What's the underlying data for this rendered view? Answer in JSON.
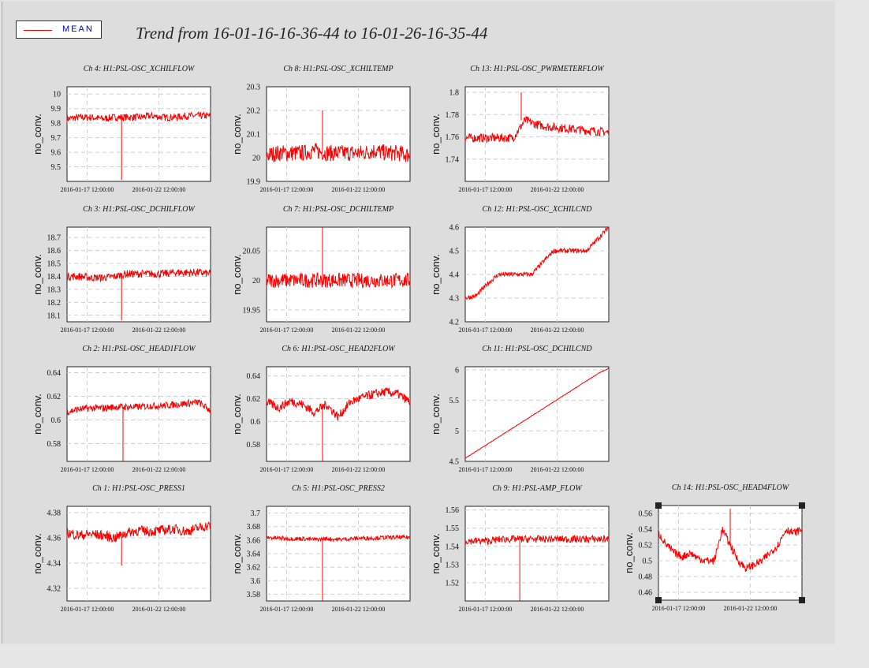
{
  "title": "Trend from 16-01-16-16-36-44 to 16-01-26-16-35-44",
  "legend": {
    "label": "MEAN",
    "color": "#ff0000"
  },
  "xticks": [
    "2016-01-17 12:00:00",
    "2016-01-22 12:00:00"
  ],
  "ylabel": "no_conv.",
  "selected_panel": "Ch 14: H1:PSL-OSC_HEAD4FLOW",
  "chart_data": [
    {
      "type": "line",
      "title": "Ch 4: H1:PSL-OSC_XCHILFLOW",
      "ylabel": "no_conv.",
      "ylim": [
        9.4,
        10.05
      ],
      "yticks": [
        9.5,
        9.6,
        9.7,
        9.8,
        9.9,
        10
      ],
      "series": [
        {
          "values": [
            9.83,
            9.84,
            9.84,
            9.83,
            9.84,
            9.84,
            9.84,
            9.85,
            9.84,
            9.84,
            9.85,
            9.85,
            9.85
          ],
          "noise": 0.05,
          "spike": [
            0.38,
            9.41
          ]
        }
      ]
    },
    {
      "type": "line",
      "title": "Ch 8: H1:PSL-OSC_XCHILTEMP",
      "ylabel": "no_conv.",
      "ylim": [
        19.9,
        20.3
      ],
      "yticks": [
        19.9,
        20,
        20.1,
        20.2,
        20.3
      ],
      "series": [
        {
          "values": [
            20.01,
            20.02,
            20.02,
            20.02,
            20.03,
            20.02,
            20.02,
            20.02,
            20.02,
            20.03,
            20.02,
            20.02,
            20.01
          ],
          "noise": 0.07,
          "spike": [
            0.39,
            20.2
          ]
        }
      ]
    },
    {
      "type": "line",
      "title": "Ch 13: H1:PSL-OSC_PWRMETERFLOW",
      "ylabel": "no_conv.",
      "ylim": [
        1.72,
        1.805
      ],
      "yticks": [
        1.74,
        1.76,
        1.78,
        1.8
      ],
      "series": [
        {
          "values": [
            1.759,
            1.759,
            1.759,
            1.759,
            1.759,
            1.775,
            1.771,
            1.769,
            1.768,
            1.767,
            1.766,
            1.765,
            1.764
          ],
          "noise": 0.008,
          "spike": [
            0.39,
            1.8
          ]
        }
      ]
    },
    {
      "type": "line",
      "title": "Ch 3: H1:PSL-OSC_DCHILFLOW",
      "ylabel": "no_conv.",
      "ylim": [
        18.05,
        18.78
      ],
      "yticks": [
        18.1,
        18.2,
        18.3,
        18.4,
        18.5,
        18.6,
        18.7
      ],
      "series": [
        {
          "values": [
            18.4,
            18.4,
            18.39,
            18.39,
            18.4,
            18.42,
            18.42,
            18.42,
            18.42,
            18.43,
            18.43,
            18.43,
            18.42
          ],
          "noise": 0.06,
          "spike": [
            0.38,
            18.06
          ]
        }
      ]
    },
    {
      "type": "line",
      "title": "Ch 7: H1:PSL-OSC_DCHILTEMP",
      "ylabel": "no_conv.",
      "ylim": [
        19.93,
        20.09
      ],
      "yticks": [
        19.95,
        20,
        20.05
      ],
      "series": [
        {
          "values": [
            20.0,
            20.0,
            20.0,
            20.0,
            20.0,
            20.0,
            20.0,
            20.0,
            20.0,
            20.0,
            20.0,
            20.0,
            20.0
          ],
          "noise": 0.025,
          "spike": [
            0.39,
            20.09
          ]
        }
      ]
    },
    {
      "type": "line",
      "title": "Ch 12: H1:PSL-OSC_XCHILCND",
      "ylabel": "no_conv.",
      "ylim": [
        4.2,
        4.6
      ],
      "yticks": [
        4.2,
        4.3,
        4.4,
        4.5,
        4.6
      ],
      "series": [
        {
          "values": [
            4.3,
            4.31,
            4.36,
            4.4,
            4.4,
            4.4,
            4.4,
            4.45,
            4.5,
            4.5,
            4.5,
            4.5,
            4.55,
            4.6
          ],
          "noise": 0.02
        }
      ]
    },
    {
      "type": "line",
      "title": "Ch 2: H1:PSL-OSC_HEAD1FLOW",
      "ylabel": "no_conv.",
      "ylim": [
        0.565,
        0.645
      ],
      "yticks": [
        0.58,
        0.6,
        0.62,
        0.64
      ],
      "series": [
        {
          "values": [
            0.607,
            0.609,
            0.61,
            0.61,
            0.611,
            0.611,
            0.611,
            0.612,
            0.612,
            0.613,
            0.614,
            0.615,
            0.608
          ],
          "noise": 0.006,
          "spike": [
            0.39,
            0.565
          ]
        }
      ]
    },
    {
      "type": "line",
      "title": "Ch 6: H1:PSL-OSC_HEAD2FLOW",
      "ylabel": "no_conv.",
      "ylim": [
        0.565,
        0.648
      ],
      "yticks": [
        0.58,
        0.6,
        0.62,
        0.64
      ],
      "series": [
        {
          "values": [
            0.617,
            0.612,
            0.618,
            0.615,
            0.608,
            0.615,
            0.604,
            0.617,
            0.621,
            0.624,
            0.626,
            0.624,
            0.617
          ],
          "noise": 0.008,
          "spike": [
            0.39,
            0.565
          ]
        }
      ]
    },
    {
      "type": "line",
      "title": "Ch 11: H1:PSL-OSC_DCHILCND",
      "ylabel": "no_conv.",
      "ylim": [
        4.5,
        6.05
      ],
      "yticks": [
        4.5,
        5,
        5.5,
        6
      ],
      "series": [
        {
          "values": [
            4.55,
            4.65,
            4.75,
            4.85,
            4.95,
            5.05,
            5.15,
            5.25,
            5.35,
            5.45,
            5.55,
            5.65,
            5.75,
            5.85,
            5.95,
            6.02
          ],
          "noise": 0.01
        }
      ]
    },
    {
      "type": "line",
      "title": "Ch 1: H1:PSL-OSC_PRESS1",
      "ylabel": "no_conv.",
      "ylim": [
        4.31,
        4.385
      ],
      "yticks": [
        4.32,
        4.34,
        4.36,
        4.38
      ],
      "series": [
        {
          "values": [
            4.364,
            4.362,
            4.363,
            4.362,
            4.36,
            4.364,
            4.366,
            4.365,
            4.366,
            4.367,
            4.365,
            4.368,
            4.37
          ],
          "noise": 0.008,
          "spike": [
            0.38,
            4.338
          ]
        }
      ]
    },
    {
      "type": "line",
      "title": "Ch 5: H1:PSL-OSC_PRESS2",
      "ylabel": "no_conv.",
      "ylim": [
        3.57,
        3.71
      ],
      "yticks": [
        3.58,
        3.6,
        3.62,
        3.64,
        3.66,
        3.68,
        3.7
      ],
      "series": [
        {
          "values": [
            3.664,
            3.663,
            3.662,
            3.662,
            3.661,
            3.662,
            3.661,
            3.662,
            3.663,
            3.663,
            3.664,
            3.664,
            3.664
          ],
          "noise": 0.006,
          "spike": [
            0.39,
            3.57
          ]
        }
      ]
    },
    {
      "type": "line",
      "title": "Ch 9: H1:PSL-AMP_FLOW",
      "ylabel": "no_conv.",
      "ylim": [
        1.51,
        1.562
      ],
      "yticks": [
        1.52,
        1.53,
        1.54,
        1.55,
        1.56
      ],
      "series": [
        {
          "values": [
            1.543,
            1.543,
            1.543,
            1.544,
            1.544,
            1.544,
            1.544,
            1.544,
            1.544,
            1.544,
            1.544,
            1.544,
            1.544
          ],
          "noise": 0.004,
          "spike": [
            0.38,
            1.51
          ]
        }
      ]
    },
    {
      "type": "line",
      "title": "Ch 14: H1:PSL-OSC_HEAD4FLOW",
      "ylabel": "no_conv.",
      "ylim": [
        0.45,
        0.57
      ],
      "yticks": [
        0.46,
        0.48,
        0.5,
        0.52,
        0.54,
        0.56
      ],
      "series": [
        {
          "values": [
            0.535,
            0.52,
            0.51,
            0.505,
            0.51,
            0.503,
            0.5,
            0.5,
            0.54,
            0.52,
            0.5,
            0.49,
            0.495,
            0.5,
            0.51,
            0.52,
            0.54,
            0.535,
            0.54
          ],
          "noise": 0.01,
          "spike": [
            0.5,
            0.566
          ]
        }
      ]
    }
  ]
}
